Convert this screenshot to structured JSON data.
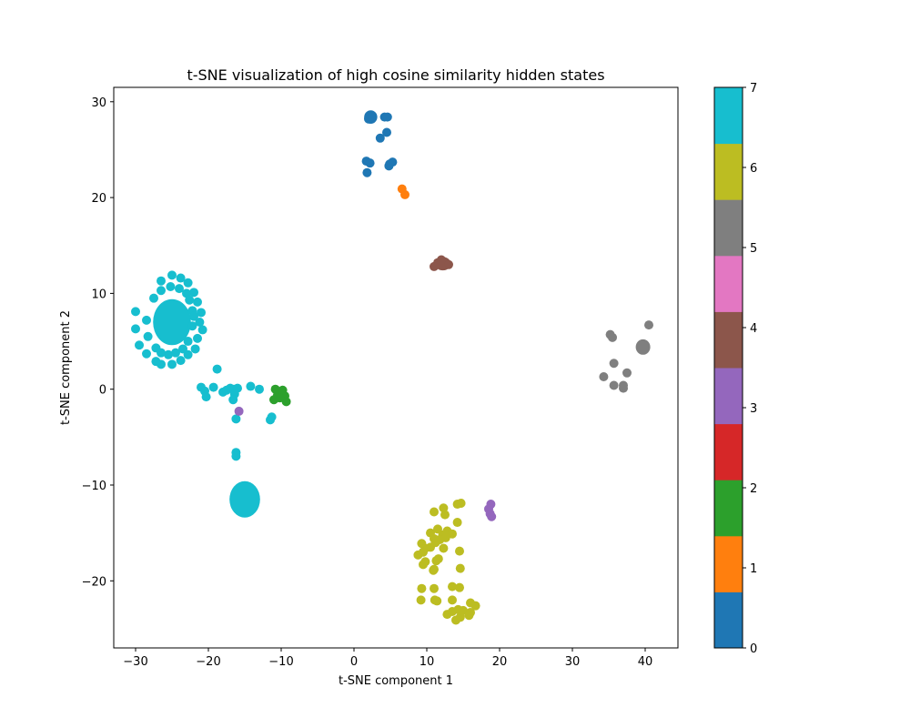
{
  "chart_data": {
    "type": "scatter",
    "title": "t-SNE visualization of high cosine similarity hidden states",
    "xlabel": "t-SNE component 1",
    "ylabel": "t-SNE component 2",
    "xlim": [
      -33,
      44.5
    ],
    "ylim": [
      -27,
      31.5
    ],
    "xticks": [
      -30,
      -20,
      -10,
      0,
      10,
      20,
      30,
      40
    ],
    "yticks": [
      -20,
      -10,
      0,
      10,
      20,
      30
    ],
    "xtick_labels": [
      "−30",
      "−20",
      "−10",
      "0",
      "10",
      "20",
      "30",
      "40"
    ],
    "ytick_labels": [
      "−20",
      "−10",
      "0",
      "10",
      "20",
      "30"
    ],
    "grid": false,
    "colorbar": {
      "min": 0,
      "max": 7,
      "ticks": [
        "0",
        "1",
        "2",
        "3",
        "4",
        "5",
        "6",
        "7"
      ],
      "colors": [
        "#1f77b4",
        "#ff7f0e",
        "#2ca02c",
        "#d62728",
        "#9467bd",
        "#8c564b",
        "#e377c2",
        "#7f7f7f",
        "#bcbd22",
        "#17becf"
      ]
    },
    "points": [
      {
        "c": 0,
        "x": 2.2,
        "y": 28.5
      },
      {
        "c": 0,
        "x": 2.0,
        "y": 28.2
      },
      {
        "c": 0,
        "x": 2.5,
        "y": 28.4
      },
      {
        "c": 0,
        "x": 4.2,
        "y": 28.4
      },
      {
        "c": 0,
        "x": 4.6,
        "y": 28.4
      },
      {
        "c": 0,
        "x": 3.6,
        "y": 26.2
      },
      {
        "c": 0,
        "x": 4.5,
        "y": 26.8
      },
      {
        "c": 0,
        "x": 1.7,
        "y": 23.8
      },
      {
        "c": 0,
        "x": 2.2,
        "y": 23.6
      },
      {
        "c": 0,
        "x": 1.8,
        "y": 22.6
      },
      {
        "c": 0,
        "x": 4.8,
        "y": 23.3
      },
      {
        "c": 0,
        "x": 5.3,
        "y": 23.7
      },
      {
        "c": 0,
        "x": 4.9,
        "y": 23.5
      },
      {
        "c": 1,
        "x": 6.6,
        "y": 20.9
      },
      {
        "c": 1,
        "x": 7.0,
        "y": 20.3
      },
      {
        "c": 5,
        "x": 11.5,
        "y": 13.2
      },
      {
        "c": 5,
        "x": 12.4,
        "y": 12.9
      },
      {
        "c": 5,
        "x": 11.0,
        "y": 12.8
      },
      {
        "c": 5,
        "x": 13.0,
        "y": 13.0
      },
      {
        "c": 5,
        "x": 12.0,
        "y": 13.5
      },
      {
        "c": 9,
        "x": -30.0,
        "y": 8.1
      },
      {
        "c": 9,
        "x": -28.5,
        "y": 7.2
      },
      {
        "c": 9,
        "x": -27.5,
        "y": 9.5
      },
      {
        "c": 9,
        "x": -26.5,
        "y": 11.3
      },
      {
        "c": 9,
        "x": -25.0,
        "y": 11.9
      },
      {
        "c": 9,
        "x": -23.8,
        "y": 11.6
      },
      {
        "c": 9,
        "x": -22.8,
        "y": 11.1
      },
      {
        "c": 9,
        "x": -22.0,
        "y": 10.1
      },
      {
        "c": 9,
        "x": -21.5,
        "y": 9.1
      },
      {
        "c": 9,
        "x": -21.0,
        "y": 8.0
      },
      {
        "c": 9,
        "x": -21.2,
        "y": 7.0
      },
      {
        "c": 9,
        "x": -20.8,
        "y": 6.2
      },
      {
        "c": 9,
        "x": -21.5,
        "y": 5.3
      },
      {
        "c": 9,
        "x": -21.8,
        "y": 4.2
      },
      {
        "c": 9,
        "x": -22.8,
        "y": 3.6
      },
      {
        "c": 9,
        "x": -23.8,
        "y": 3.0
      },
      {
        "c": 9,
        "x": -25.0,
        "y": 2.6
      },
      {
        "c": 9,
        "x": -26.5,
        "y": 2.6
      },
      {
        "c": 9,
        "x": -27.2,
        "y": 2.9
      },
      {
        "c": 9,
        "x": -28.5,
        "y": 3.7
      },
      {
        "c": 9,
        "x": -29.5,
        "y": 4.6
      },
      {
        "c": 9,
        "x": -30.0,
        "y": 6.3
      },
      {
        "c": 9,
        "x": -27.2,
        "y": 4.3
      },
      {
        "c": 9,
        "x": -28.3,
        "y": 5.5
      },
      {
        "c": 9,
        "x": -26.5,
        "y": 10.3
      },
      {
        "c": 9,
        "x": -25.2,
        "y": 10.7
      },
      {
        "c": 9,
        "x": -24.0,
        "y": 10.5
      },
      {
        "c": 9,
        "x": -23.0,
        "y": 10.0
      },
      {
        "c": 9,
        "x": -22.6,
        "y": 9.3
      },
      {
        "c": 9,
        "x": -22.2,
        "y": 8.2
      },
      {
        "c": 9,
        "x": -22.0,
        "y": 7.6
      },
      {
        "c": 9,
        "x": -22.2,
        "y": 6.6
      },
      {
        "c": 9,
        "x": -22.8,
        "y": 5.0
      },
      {
        "c": 9,
        "x": -23.5,
        "y": 4.2
      },
      {
        "c": 9,
        "x": -24.5,
        "y": 3.8
      },
      {
        "c": 9,
        "x": -25.5,
        "y": 3.6
      },
      {
        "c": 9,
        "x": -26.5,
        "y": 3.8
      },
      {
        "c": 9,
        "x": -18.8,
        "y": 2.1
      },
      {
        "c": 9,
        "x": -21.0,
        "y": 0.2
      },
      {
        "c": 9,
        "x": -20.5,
        "y": -0.2
      },
      {
        "c": 9,
        "x": -20.3,
        "y": -0.8
      },
      {
        "c": 9,
        "x": -19.3,
        "y": 0.2
      },
      {
        "c": 9,
        "x": -18.0,
        "y": -0.3
      },
      {
        "c": 9,
        "x": -17.5,
        "y": -0.1
      },
      {
        "c": 9,
        "x": -17.0,
        "y": 0.1
      },
      {
        "c": 9,
        "x": -16.5,
        "y": 0.0
      },
      {
        "c": 9,
        "x": -16.0,
        "y": 0.1
      },
      {
        "c": 9,
        "x": -16.4,
        "y": -0.5
      },
      {
        "c": 9,
        "x": -16.6,
        "y": -1.1
      },
      {
        "c": 9,
        "x": -14.2,
        "y": 0.3
      },
      {
        "c": 9,
        "x": -13.0,
        "y": 0.0
      },
      {
        "c": 9,
        "x": -16.2,
        "y": -3.1
      },
      {
        "c": 9,
        "x": -11.5,
        "y": -3.2
      },
      {
        "c": 9,
        "x": -11.3,
        "y": -2.9
      },
      {
        "c": 9,
        "x": -16.2,
        "y": -6.6
      },
      {
        "c": 9,
        "x": -16.2,
        "y": -7.0
      },
      {
        "c": 2,
        "x": -10.8,
        "y": 0.0
      },
      {
        "c": 2,
        "x": -10.5,
        "y": -0.6
      },
      {
        "c": 2,
        "x": -11.0,
        "y": -1.1
      },
      {
        "c": 2,
        "x": -9.8,
        "y": -0.1
      },
      {
        "c": 2,
        "x": -9.5,
        "y": -0.7
      },
      {
        "c": 2,
        "x": -9.3,
        "y": -1.3
      },
      {
        "c": 2,
        "x": -10.2,
        "y": -0.9
      },
      {
        "c": 4,
        "x": -15.8,
        "y": -2.3
      },
      {
        "c": 4,
        "x": 18.8,
        "y": -12.0
      },
      {
        "c": 4,
        "x": 18.5,
        "y": -12.5
      },
      {
        "c": 4,
        "x": 18.7,
        "y": -13.0
      },
      {
        "c": 4,
        "x": 18.9,
        "y": -13.3
      },
      {
        "c": 8,
        "x": 11.0,
        "y": -12.8
      },
      {
        "c": 8,
        "x": 12.3,
        "y": -12.4
      },
      {
        "c": 8,
        "x": 12.5,
        "y": -13.1
      },
      {
        "c": 8,
        "x": 14.2,
        "y": -12.0
      },
      {
        "c": 8,
        "x": 14.7,
        "y": -11.9
      },
      {
        "c": 8,
        "x": 14.2,
        "y": -13.9
      },
      {
        "c": 8,
        "x": 10.5,
        "y": -15.0
      },
      {
        "c": 8,
        "x": 11.5,
        "y": -14.6
      },
      {
        "c": 8,
        "x": 12.2,
        "y": -15.2
      },
      {
        "c": 8,
        "x": 12.8,
        "y": -14.8
      },
      {
        "c": 8,
        "x": 13.5,
        "y": -15.1
      },
      {
        "c": 8,
        "x": 11.0,
        "y": -15.6
      },
      {
        "c": 8,
        "x": 11.8,
        "y": -15.7
      },
      {
        "c": 8,
        "x": 12.6,
        "y": -15.5
      },
      {
        "c": 8,
        "x": 9.3,
        "y": -16.1
      },
      {
        "c": 8,
        "x": 9.8,
        "y": -16.6
      },
      {
        "c": 8,
        "x": 10.5,
        "y": -16.5
      },
      {
        "c": 8,
        "x": 11.2,
        "y": -16.0
      },
      {
        "c": 8,
        "x": 12.3,
        "y": -16.6
      },
      {
        "c": 8,
        "x": 8.8,
        "y": -17.3
      },
      {
        "c": 8,
        "x": 9.5,
        "y": -17.0
      },
      {
        "c": 8,
        "x": 14.5,
        "y": -16.9
      },
      {
        "c": 8,
        "x": 9.5,
        "y": -18.3
      },
      {
        "c": 8,
        "x": 9.8,
        "y": -18.0
      },
      {
        "c": 8,
        "x": 11.3,
        "y": -17.9
      },
      {
        "c": 8,
        "x": 11.6,
        "y": -17.7
      },
      {
        "c": 8,
        "x": 11.0,
        "y": -18.8
      },
      {
        "c": 8,
        "x": 10.9,
        "y": -18.9
      },
      {
        "c": 8,
        "x": 14.6,
        "y": -18.7
      },
      {
        "c": 8,
        "x": 9.3,
        "y": -20.8
      },
      {
        "c": 8,
        "x": 11.0,
        "y": -20.8
      },
      {
        "c": 8,
        "x": 13.5,
        "y": -20.6
      },
      {
        "c": 8,
        "x": 14.5,
        "y": -20.7
      },
      {
        "c": 8,
        "x": 9.2,
        "y": -22.0
      },
      {
        "c": 8,
        "x": 11.1,
        "y": -22.0
      },
      {
        "c": 8,
        "x": 11.4,
        "y": -22.1
      },
      {
        "c": 8,
        "x": 13.5,
        "y": -22.0
      },
      {
        "c": 8,
        "x": 16.0,
        "y": -22.3
      },
      {
        "c": 8,
        "x": 16.7,
        "y": -22.6
      },
      {
        "c": 8,
        "x": 12.8,
        "y": -23.5
      },
      {
        "c": 8,
        "x": 13.5,
        "y": -23.2
      },
      {
        "c": 8,
        "x": 14.3,
        "y": -23.0
      },
      {
        "c": 8,
        "x": 15.0,
        "y": -23.1
      },
      {
        "c": 8,
        "x": 16.0,
        "y": -23.3
      },
      {
        "c": 8,
        "x": 14.0,
        "y": -24.1
      },
      {
        "c": 8,
        "x": 14.6,
        "y": -23.8
      },
      {
        "c": 8,
        "x": 15.8,
        "y": -23.6
      },
      {
        "c": 7,
        "x": 35.2,
        "y": 5.7
      },
      {
        "c": 7,
        "x": 35.5,
        "y": 5.4
      },
      {
        "c": 7,
        "x": 35.7,
        "y": 2.7
      },
      {
        "c": 7,
        "x": 34.3,
        "y": 1.3
      },
      {
        "c": 7,
        "x": 35.7,
        "y": 0.4
      },
      {
        "c": 7,
        "x": 37.0,
        "y": 0.1
      },
      {
        "c": 7,
        "x": 37.0,
        "y": 0.4
      },
      {
        "c": 7,
        "x": 37.5,
        "y": 1.7
      },
      {
        "c": 7,
        "x": 40.5,
        "y": 6.7
      }
    ],
    "dense_clusters": [
      {
        "c": 9,
        "x": -25,
        "y": 7,
        "rx": 2.6,
        "ry": 2.4
      },
      {
        "c": 9,
        "x": -15,
        "y": -11.5,
        "rx": 2.1,
        "ry": 1.9
      },
      {
        "c": 7,
        "x": 39.7,
        "y": 4.4,
        "rx": 1.0,
        "ry": 0.8
      },
      {
        "c": 5,
        "x": 12.2,
        "y": 13.1,
        "rx": 1.1,
        "ry": 0.7
      },
      {
        "c": 0,
        "x": 2.3,
        "y": 28.4,
        "rx": 0.9,
        "ry": 0.7
      }
    ]
  }
}
